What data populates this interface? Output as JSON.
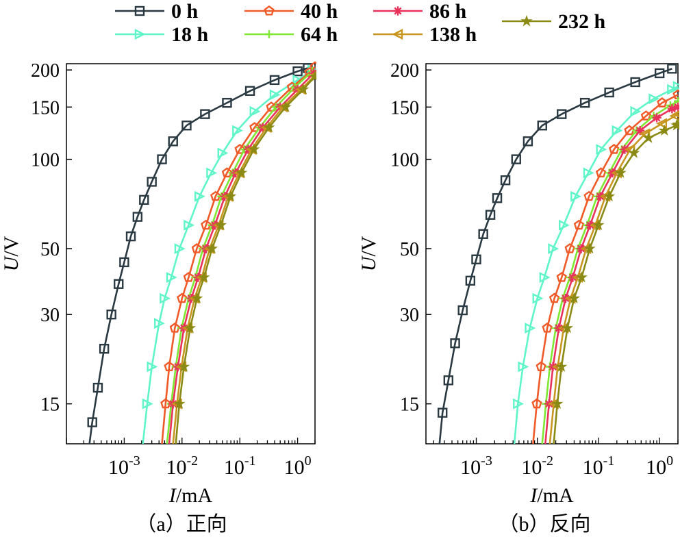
{
  "legend": [
    {
      "label": "0 h",
      "color": "#2b3a42",
      "marker": "square"
    },
    {
      "label": "18 h",
      "color": "#5ff5c8",
      "marker": "triangle-right"
    },
    {
      "label": "40 h",
      "color": "#f05a28",
      "marker": "pentagon"
    },
    {
      "label": "64 h",
      "color": "#7ee832",
      "marker": "plus"
    },
    {
      "label": "86 h",
      "color": "#e8325a",
      "marker": "asterisk"
    },
    {
      "label": "138 h",
      "color": "#c8961e",
      "marker": "triangle-left"
    },
    {
      "label": "232 h",
      "color": "#8a8a14",
      "marker": "star"
    }
  ],
  "chart_data": [
    {
      "type": "line",
      "caption": "（a）正向",
      "xlabel_italic": "I",
      "xlabel_unit": "/mA",
      "ylabel_italic": "U",
      "ylabel_unit": "/V",
      "xscale": "log",
      "yscale": "log",
      "xlim": [
        0.0001,
        2.0
      ],
      "ylim": [
        11,
        210
      ],
      "xticks": [
        {
          "value": 0.001,
          "base": "10",
          "exp": "-3"
        },
        {
          "value": 0.01,
          "base": "10",
          "exp": "-2"
        },
        {
          "value": 0.1,
          "base": "10",
          "exp": "-1"
        },
        {
          "value": 1,
          "base": "10",
          "exp": "0"
        }
      ],
      "yticks": [
        {
          "value": 15,
          "label": "15"
        },
        {
          "value": 30,
          "label": "30"
        },
        {
          "value": 50,
          "label": "50"
        },
        {
          "value": 100,
          "label": "100"
        },
        {
          "value": 150,
          "label": "150"
        },
        {
          "value": 200,
          "label": "200"
        }
      ],
      "series": [
        {
          "name": "0 h",
          "x": [
            0.00025,
            0.00028,
            0.00035,
            0.00045,
            0.0006,
            0.0008,
            0.001,
            0.0013,
            0.0017,
            0.0022,
            0.003,
            0.0045,
            0.007,
            0.012,
            0.025,
            0.06,
            0.15,
            0.4,
            1.0,
            1.5
          ],
          "y": [
            11,
            13,
            17,
            23,
            30,
            38,
            45,
            55,
            64,
            73,
            84,
            100,
            115,
            130,
            142,
            155,
            170,
            185,
            198,
            203
          ]
        },
        {
          "name": "18 h",
          "x": [
            0.0021,
            0.0025,
            0.003,
            0.004,
            0.005,
            0.0065,
            0.009,
            0.013,
            0.02,
            0.032,
            0.05,
            0.09,
            0.18,
            0.4,
            1.0,
            1.8
          ],
          "y": [
            11,
            15,
            20,
            28,
            34,
            40,
            50,
            60,
            75,
            90,
            105,
            125,
            145,
            165,
            185,
            200
          ]
        },
        {
          "name": "40 h",
          "x": [
            0.0045,
            0.0052,
            0.006,
            0.0075,
            0.01,
            0.013,
            0.018,
            0.026,
            0.038,
            0.06,
            0.1,
            0.18,
            0.35,
            0.8,
            1.6,
            2.0
          ],
          "y": [
            11,
            15,
            20,
            27,
            34,
            40,
            50,
            60,
            75,
            90,
            108,
            128,
            150,
            175,
            196,
            205
          ]
        },
        {
          "name": "64 h",
          "x": [
            0.0055,
            0.0065,
            0.0078,
            0.0098,
            0.013,
            0.017,
            0.023,
            0.033,
            0.048,
            0.075,
            0.12,
            0.22,
            0.42,
            0.9,
            1.8
          ],
          "y": [
            11,
            15,
            20,
            27,
            34,
            40,
            50,
            60,
            75,
            90,
            108,
            128,
            150,
            175,
            198
          ]
        },
        {
          "name": "86 h",
          "x": [
            0.006,
            0.007,
            0.0085,
            0.0108,
            0.0145,
            0.019,
            0.026,
            0.037,
            0.055,
            0.085,
            0.14,
            0.25,
            0.5,
            1.0,
            1.9
          ],
          "y": [
            11,
            15,
            20,
            27,
            34,
            40,
            50,
            60,
            75,
            90,
            108,
            128,
            150,
            172,
            195
          ]
        },
        {
          "name": "138 h",
          "x": [
            0.007,
            0.0082,
            0.0098,
            0.0125,
            0.0165,
            0.022,
            0.03,
            0.043,
            0.063,
            0.098,
            0.16,
            0.29,
            0.56,
            1.15,
            2.0
          ],
          "y": [
            11,
            15,
            20,
            27,
            34,
            40,
            50,
            60,
            75,
            90,
            108,
            128,
            150,
            172,
            192
          ]
        },
        {
          "name": "232 h",
          "x": [
            0.0078,
            0.009,
            0.0108,
            0.0138,
            0.0182,
            0.024,
            0.033,
            0.047,
            0.069,
            0.107,
            0.175,
            0.32,
            0.62,
            1.25,
            2.0
          ],
          "y": [
            11,
            15,
            20,
            27,
            34,
            40,
            50,
            60,
            75,
            90,
            108,
            128,
            150,
            172,
            190
          ]
        }
      ]
    },
    {
      "type": "line",
      "caption": "（b）反向",
      "xlabel_italic": "I",
      "xlabel_unit": "/mA",
      "ylabel_italic": "U",
      "ylabel_unit": "/V",
      "xscale": "log",
      "yscale": "log",
      "xlim": [
        0.00015,
        2.0
      ],
      "ylim": [
        11,
        210
      ],
      "xticks": [
        {
          "value": 0.001,
          "base": "10",
          "exp": "-3"
        },
        {
          "value": 0.01,
          "base": "10",
          "exp": "-2"
        },
        {
          "value": 0.1,
          "base": "10",
          "exp": "-1"
        },
        {
          "value": 1,
          "base": "10",
          "exp": "0"
        }
      ],
      "yticks": [
        {
          "value": 15,
          "label": "15"
        },
        {
          "value": 30,
          "label": "30"
        },
        {
          "value": 50,
          "label": "50"
        },
        {
          "value": 100,
          "label": "100"
        },
        {
          "value": 150,
          "label": "150"
        },
        {
          "value": 200,
          "label": "200"
        }
      ],
      "series": [
        {
          "name": "0 h",
          "x": [
            0.00025,
            0.00028,
            0.00035,
            0.00045,
            0.0006,
            0.0008,
            0.001,
            0.0013,
            0.0017,
            0.0022,
            0.003,
            0.0045,
            0.007,
            0.012,
            0.025,
            0.06,
            0.15,
            0.4,
            1.0,
            1.6
          ],
          "y": [
            11,
            14,
            18,
            24,
            31,
            39,
            46,
            56,
            65,
            74,
            85,
            100,
            115,
            130,
            142,
            155,
            168,
            182,
            195,
            202
          ]
        },
        {
          "name": "18 h",
          "x": [
            0.0042,
            0.0048,
            0.0058,
            0.0075,
            0.01,
            0.013,
            0.018,
            0.027,
            0.042,
            0.068,
            0.11,
            0.2,
            0.4,
            0.8,
            1.6,
            2.0
          ],
          "y": [
            11,
            15,
            20,
            27,
            34,
            40,
            50,
            60,
            75,
            90,
            108,
            125,
            145,
            160,
            172,
            176
          ]
        },
        {
          "name": "40 h",
          "x": [
            0.0085,
            0.0098,
            0.0115,
            0.0145,
            0.019,
            0.025,
            0.034,
            0.048,
            0.07,
            0.11,
            0.18,
            0.32,
            0.6,
            1.1,
            2.0
          ],
          "y": [
            11,
            15,
            20,
            27,
            34,
            40,
            50,
            60,
            75,
            90,
            108,
            125,
            140,
            155,
            165
          ]
        },
        {
          "name": "64 h",
          "x": [
            0.012,
            0.0138,
            0.016,
            0.02,
            0.026,
            0.034,
            0.046,
            0.065,
            0.095,
            0.15,
            0.24,
            0.42,
            0.8,
            1.5,
            2.0
          ],
          "y": [
            11,
            15,
            20,
            27,
            34,
            40,
            50,
            60,
            75,
            90,
            108,
            125,
            140,
            152,
            157
          ]
        },
        {
          "name": "86 h",
          "x": [
            0.0135,
            0.0155,
            0.018,
            0.0225,
            0.029,
            0.038,
            0.052,
            0.073,
            0.107,
            0.17,
            0.27,
            0.48,
            0.9,
            1.6,
            2.0
          ],
          "y": [
            11,
            15,
            20,
            27,
            34,
            40,
            50,
            60,
            75,
            90,
            108,
            125,
            138,
            148,
            150
          ]
        },
        {
          "name": "138 h",
          "x": [
            0.016,
            0.0185,
            0.0215,
            0.027,
            0.035,
            0.046,
            0.063,
            0.089,
            0.13,
            0.2,
            0.33,
            0.58,
            1.1,
            1.8,
            2.0
          ],
          "y": [
            11,
            15,
            20,
            27,
            34,
            40,
            50,
            60,
            75,
            90,
            108,
            122,
            132,
            140,
            142
          ]
        },
        {
          "name": "232 h",
          "x": [
            0.0185,
            0.0212,
            0.0248,
            0.031,
            0.04,
            0.053,
            0.072,
            0.1,
            0.15,
            0.23,
            0.38,
            0.66,
            1.2,
            1.9,
            2.0
          ],
          "y": [
            11,
            15,
            20,
            27,
            34,
            40,
            50,
            60,
            75,
            90,
            105,
            118,
            125,
            130,
            131
          ]
        }
      ]
    }
  ]
}
